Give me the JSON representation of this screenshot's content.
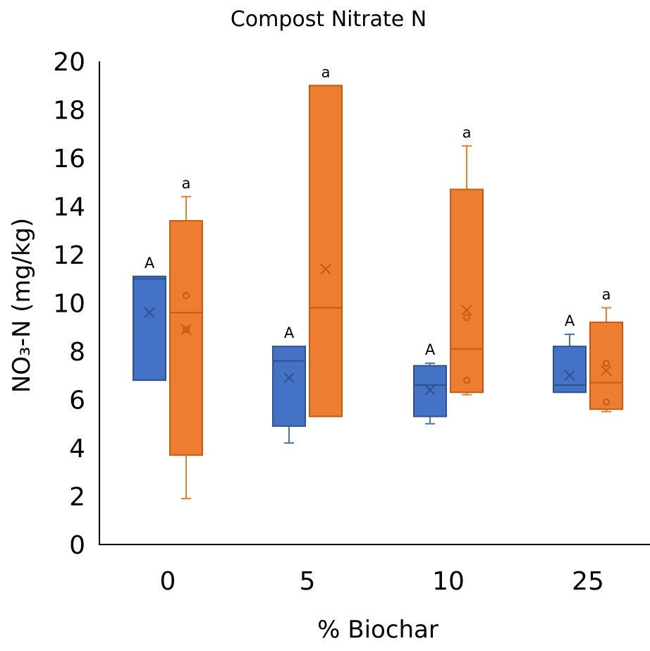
{
  "chart_data": {
    "type": "box",
    "title": "Compost Nitrate N",
    "xlabel": "% Biochar",
    "ylabel": "NO₃-N (mg/kg)",
    "ylim": [
      0,
      20
    ],
    "yticks": [
      0,
      2,
      4,
      6,
      8,
      10,
      12,
      14,
      16,
      18,
      20
    ],
    "categories": [
      "0",
      "5",
      "10",
      "25"
    ],
    "grid": false,
    "legend": "none",
    "series": [
      {
        "color": "#4472C4",
        "boxes": [
          {
            "category": "0",
            "min": 6.8,
            "q1": 6.8,
            "median": 11.0,
            "q3": 11.1,
            "max": 11.1,
            "mean": 9.6,
            "outliers": [],
            "label": "A"
          },
          {
            "category": "5",
            "min": 4.2,
            "q1": 4.9,
            "median": 7.6,
            "q3": 8.2,
            "max": 8.2,
            "mean": 6.9,
            "outliers": [],
            "label": "A"
          },
          {
            "category": "10",
            "min": 5.0,
            "q1": 5.3,
            "median": 6.6,
            "q3": 7.4,
            "max": 7.5,
            "mean": 6.4,
            "outliers": [],
            "label": "A"
          },
          {
            "category": "25",
            "min": 6.3,
            "q1": 6.3,
            "median": 6.6,
            "q3": 8.2,
            "max": 8.7,
            "mean": 7.0,
            "outliers": [],
            "label": "A"
          }
        ]
      },
      {
        "color": "#ED7D31",
        "boxes": [
          {
            "category": "0",
            "min": 1.9,
            "q1": 3.7,
            "median": 9.6,
            "q3": 13.4,
            "max": 14.4,
            "mean": 8.9,
            "outliers": [
              10.3,
              8.9
            ],
            "label": "a"
          },
          {
            "category": "5",
            "min": 5.3,
            "q1": 5.3,
            "median": 9.8,
            "q3": 19.0,
            "max": 19.0,
            "mean": 11.4,
            "outliers": [],
            "label": "a"
          },
          {
            "category": "10",
            "min": 6.2,
            "q1": 6.3,
            "median": 8.1,
            "q3": 14.7,
            "max": 16.5,
            "mean": 9.7,
            "outliers": [
              9.4,
              6.8
            ],
            "label": "a"
          },
          {
            "category": "25",
            "min": 5.5,
            "q1": 5.6,
            "median": 6.7,
            "q3": 9.2,
            "max": 9.8,
            "mean": 7.2,
            "outliers": [
              7.5,
              5.9
            ],
            "label": "a"
          }
        ]
      }
    ]
  }
}
